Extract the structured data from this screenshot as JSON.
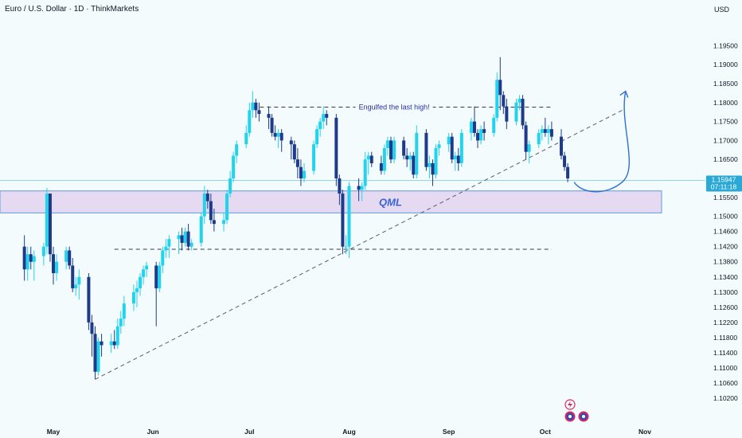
{
  "header": {
    "title": "Euro / U.S. Dollar · 1D · ThinkMarkets",
    "currency": "USD"
  },
  "colors": {
    "background": "#f3fbfd",
    "bullish": "#22d3ee",
    "bearish": "#1e3a8a",
    "zone_fill": "#e4d7f0",
    "zone_border": "#4f8fd6",
    "annotation": "#2b2f9e",
    "trendline": "#5b5b6b",
    "price_badge": "#2aa9d6",
    "projection": "#2f6fd6"
  },
  "chart_data": {
    "type": "candlestick",
    "y_ticks": [
      "1.19500",
      "1.19000",
      "1.18500",
      "1.18000",
      "1.17500",
      "1.17000",
      "1.16500",
      "1.15500",
      "1.15000",
      "1.14600",
      "1.14200",
      "1.13800",
      "1.13400",
      "1.13000",
      "1.12600",
      "1.12200",
      "1.11800",
      "1.11400",
      "1.11000",
      "1.10600",
      "1.10200"
    ],
    "x_ticks": [
      "May",
      "Jun",
      "Jul",
      "Aug",
      "Sep",
      "Oct",
      "Nov"
    ],
    "ylim": [
      1.0995,
      1.1995
    ],
    "current_price": "1.15947",
    "countdown": "07:11:18",
    "qml_zone": {
      "label": "QML",
      "from": 1.1509,
      "to": 1.1567
    },
    "resistance_line": {
      "price": 1.1788,
      "label": "Engulfed the last high!"
    },
    "support_line": {
      "price": 1.1413
    },
    "trendline": {
      "start": [
        "May 14",
        1.107
      ],
      "end": [
        "Oct 25",
        1.178
      ]
    },
    "projection": {
      "start": [
        "Oct 10",
        1.159
      ],
      "low": [
        "Oct 14",
        1.1575
      ],
      "end": [
        "Oct 26",
        1.183
      ]
    },
    "candles": [
      {
        "d": "Apr 22",
        "o": 1.142,
        "h": 1.145,
        "l": 1.133,
        "c": 1.136
      },
      {
        "d": "Apr 23",
        "o": 1.136,
        "h": 1.142,
        "l": 1.133,
        "c": 1.14
      },
      {
        "d": "Apr 24",
        "o": 1.14,
        "h": 1.142,
        "l": 1.136,
        "c": 1.138
      },
      {
        "d": "Apr 25",
        "o": 1.138,
        "h": 1.141,
        "l": 1.133,
        "c": 1.1395
      },
      {
        "d": "Apr 28",
        "o": 1.1395,
        "h": 1.143,
        "l": 1.137,
        "c": 1.142
      },
      {
        "d": "Apr 29",
        "o": 1.142,
        "h": 1.1575,
        "l": 1.14,
        "c": 1.156
      },
      {
        "d": "Apr 30",
        "o": 1.156,
        "h": 1.156,
        "l": 1.138,
        "c": 1.14
      },
      {
        "d": "May 1",
        "o": 1.14,
        "h": 1.142,
        "l": 1.132,
        "c": 1.135
      },
      {
        "d": "May 2",
        "o": 1.135,
        "h": 1.14,
        "l": 1.133,
        "c": 1.138
      },
      {
        "d": "May 5",
        "o": 1.138,
        "h": 1.142,
        "l": 1.136,
        "c": 1.141
      },
      {
        "d": "May 6",
        "o": 1.141,
        "h": 1.142,
        "l": 1.136,
        "c": 1.137
      },
      {
        "d": "May 7",
        "o": 1.137,
        "h": 1.139,
        "l": 1.13,
        "c": 1.131
      },
      {
        "d": "May 8",
        "o": 1.131,
        "h": 1.134,
        "l": 1.129,
        "c": 1.132
      },
      {
        "d": "May 9",
        "o": 1.132,
        "h": 1.136,
        "l": 1.128,
        "c": 1.134
      },
      {
        "d": "May 12",
        "o": 1.134,
        "h": 1.135,
        "l": 1.12,
        "c": 1.122
      },
      {
        "d": "May 13",
        "o": 1.122,
        "h": 1.124,
        "l": 1.113,
        "c": 1.119
      },
      {
        "d": "May 14",
        "o": 1.119,
        "h": 1.121,
        "l": 1.107,
        "c": 1.109
      },
      {
        "d": "May 15",
        "o": 1.109,
        "h": 1.118,
        "l": 1.108,
        "c": 1.117
      },
      {
        "d": "May 16",
        "o": 1.117,
        "h": 1.119,
        "l": 1.113,
        "c": 1.116
      },
      {
        "d": "May 19",
        "o": 1.116,
        "h": 1.119,
        "l": 1.114,
        "c": 1.117
      },
      {
        "d": "May 20",
        "o": 1.117,
        "h": 1.12,
        "l": 1.115,
        "c": 1.116
      },
      {
        "d": "May 21",
        "o": 1.116,
        "h": 1.123,
        "l": 1.115,
        "c": 1.121
      },
      {
        "d": "May 22",
        "o": 1.121,
        "h": 1.125,
        "l": 1.119,
        "c": 1.123
      },
      {
        "d": "May 23",
        "o": 1.123,
        "h": 1.129,
        "l": 1.121,
        "c": 1.127
      },
      {
        "d": "May 26",
        "o": 1.127,
        "h": 1.132,
        "l": 1.125,
        "c": 1.13
      },
      {
        "d": "May 27",
        "o": 1.13,
        "h": 1.133,
        "l": 1.126,
        "c": 1.131
      },
      {
        "d": "May 28",
        "o": 1.131,
        "h": 1.135,
        "l": 1.129,
        "c": 1.134
      },
      {
        "d": "May 29",
        "o": 1.134,
        "h": 1.137,
        "l": 1.132,
        "c": 1.136
      },
      {
        "d": "May 30",
        "o": 1.136,
        "h": 1.138,
        "l": 1.134,
        "c": 1.137
      },
      {
        "d": "Jun 2",
        "o": 1.137,
        "h": 1.138,
        "l": 1.121,
        "c": 1.131
      },
      {
        "d": "Jun 3",
        "o": 1.131,
        "h": 1.138,
        "l": 1.13,
        "c": 1.137
      },
      {
        "d": "Jun 4",
        "o": 1.137,
        "h": 1.142,
        "l": 1.135,
        "c": 1.141
      },
      {
        "d": "Jun 5",
        "o": 1.141,
        "h": 1.144,
        "l": 1.139,
        "c": 1.142
      },
      {
        "d": "Jun 6",
        "o": 1.142,
        "h": 1.145,
        "l": 1.139,
        "c": 1.144
      },
      {
        "d": "Jun 9",
        "o": 1.144,
        "h": 1.146,
        "l": 1.14,
        "c": 1.145
      },
      {
        "d": "Jun 10",
        "o": 1.145,
        "h": 1.147,
        "l": 1.141,
        "c": 1.143
      },
      {
        "d": "Jun 11",
        "o": 1.143,
        "h": 1.147,
        "l": 1.142,
        "c": 1.146
      },
      {
        "d": "Jun 12",
        "o": 1.146,
        "h": 1.148,
        "l": 1.141,
        "c": 1.142
      },
      {
        "d": "Jun 13",
        "o": 1.142,
        "h": 1.144,
        "l": 1.141,
        "c": 1.143
      },
      {
        "d": "Jun 16",
        "o": 1.143,
        "h": 1.151,
        "l": 1.142,
        "c": 1.15
      },
      {
        "d": "Jun 17",
        "o": 1.15,
        "h": 1.158,
        "l": 1.148,
        "c": 1.156
      },
      {
        "d": "Jun 18",
        "o": 1.156,
        "h": 1.157,
        "l": 1.152,
        "c": 1.154
      },
      {
        "d": "Jun 19",
        "o": 1.154,
        "h": 1.156,
        "l": 1.148,
        "c": 1.149
      },
      {
        "d": "Jun 20",
        "o": 1.149,
        "h": 1.152,
        "l": 1.146,
        "c": 1.148
      },
      {
        "d": "Jun 23",
        "o": 1.148,
        "h": 1.151,
        "l": 1.146,
        "c": 1.149
      },
      {
        "d": "Jun 24",
        "o": 1.149,
        "h": 1.157,
        "l": 1.148,
        "c": 1.156
      },
      {
        "d": "Jun 25",
        "o": 1.156,
        "h": 1.162,
        "l": 1.155,
        "c": 1.16
      },
      {
        "d": "Jun 26",
        "o": 1.16,
        "h": 1.167,
        "l": 1.159,
        "c": 1.166
      },
      {
        "d": "Jun 27",
        "o": 1.166,
        "h": 1.17,
        "l": 1.164,
        "c": 1.169
      },
      {
        "d": "Jun 30",
        "o": 1.169,
        "h": 1.174,
        "l": 1.168,
        "c": 1.172
      },
      {
        "d": "Jul 1",
        "o": 1.172,
        "h": 1.18,
        "l": 1.171,
        "c": 1.178
      },
      {
        "d": "Jul 2",
        "o": 1.178,
        "h": 1.183,
        "l": 1.176,
        "c": 1.18
      },
      {
        "d": "Jul 3",
        "o": 1.18,
        "h": 1.181,
        "l": 1.176,
        "c": 1.178
      },
      {
        "d": "Jul 4",
        "o": 1.178,
        "h": 1.18,
        "l": 1.175,
        "c": 1.177
      },
      {
        "d": "Jul 7",
        "o": 1.177,
        "h": 1.179,
        "l": 1.173,
        "c": 1.176
      },
      {
        "d": "Jul 8",
        "o": 1.176,
        "h": 1.177,
        "l": 1.171,
        "c": 1.172
      },
      {
        "d": "Jul 9",
        "o": 1.172,
        "h": 1.174,
        "l": 1.17,
        "c": 1.171
      },
      {
        "d": "Jul 10",
        "o": 1.171,
        "h": 1.173,
        "l": 1.168,
        "c": 1.172
      },
      {
        "d": "Jul 11",
        "o": 1.172,
        "h": 1.173,
        "l": 1.167,
        "c": 1.17
      },
      {
        "d": "Jul 14",
        "o": 1.17,
        "h": 1.171,
        "l": 1.165,
        "c": 1.169
      },
      {
        "d": "Jul 15",
        "o": 1.169,
        "h": 1.17,
        "l": 1.164,
        "c": 1.165
      },
      {
        "d": "Jul 16",
        "o": 1.165,
        "h": 1.168,
        "l": 1.16,
        "c": 1.163
      },
      {
        "d": "Jul 17",
        "o": 1.163,
        "h": 1.165,
        "l": 1.158,
        "c": 1.16
      },
      {
        "d": "Jul 18",
        "o": 1.16,
        "h": 1.164,
        "l": 1.159,
        "c": 1.162
      },
      {
        "d": "Jul 21",
        "o": 1.162,
        "h": 1.17,
        "l": 1.161,
        "c": 1.169
      },
      {
        "d": "Jul 22",
        "o": 1.169,
        "h": 1.174,
        "l": 1.168,
        "c": 1.173
      },
      {
        "d": "Jul 23",
        "o": 1.173,
        "h": 1.176,
        "l": 1.171,
        "c": 1.175
      },
      {
        "d": "Jul 24",
        "o": 1.175,
        "h": 1.179,
        "l": 1.173,
        "c": 1.177
      },
      {
        "d": "Jul 25",
        "o": 1.177,
        "h": 1.178,
        "l": 1.174,
        "c": 1.176
      },
      {
        "d": "Jul 28",
        "o": 1.176,
        "h": 1.177,
        "l": 1.158,
        "c": 1.16
      },
      {
        "d": "Jul 29",
        "o": 1.16,
        "h": 1.161,
        "l": 1.153,
        "c": 1.156
      },
      {
        "d": "Jul 30",
        "o": 1.156,
        "h": 1.157,
        "l": 1.14,
        "c": 1.142
      },
      {
        "d": "Jul 31",
        "o": 1.142,
        "h": 1.145,
        "l": 1.14,
        "c": 1.142
      },
      {
        "d": "Aug 1",
        "o": 1.142,
        "h": 1.159,
        "l": 1.139,
        "c": 1.158
      },
      {
        "d": "Aug 4",
        "o": 1.158,
        "h": 1.16,
        "l": 1.154,
        "c": 1.157
      },
      {
        "d": "Aug 5",
        "o": 1.157,
        "h": 1.159,
        "l": 1.154,
        "c": 1.158
      },
      {
        "d": "Aug 6",
        "o": 1.158,
        "h": 1.167,
        "l": 1.157,
        "c": 1.165
      },
      {
        "d": "Aug 7",
        "o": 1.165,
        "h": 1.167,
        "l": 1.161,
        "c": 1.166
      },
      {
        "d": "Aug 8",
        "o": 1.166,
        "h": 1.167,
        "l": 1.163,
        "c": 1.164
      },
      {
        "d": "Aug 11",
        "o": 1.164,
        "h": 1.166,
        "l": 1.161,
        "c": 1.162
      },
      {
        "d": "Aug 12",
        "o": 1.162,
        "h": 1.169,
        "l": 1.161,
        "c": 1.168
      },
      {
        "d": "Aug 13",
        "o": 1.168,
        "h": 1.171,
        "l": 1.166,
        "c": 1.17
      },
      {
        "d": "Aug 14",
        "o": 1.17,
        "h": 1.171,
        "l": 1.164,
        "c": 1.165
      },
      {
        "d": "Aug 15",
        "o": 1.165,
        "h": 1.171,
        "l": 1.164,
        "c": 1.17
      },
      {
        "d": "Aug 18",
        "o": 1.17,
        "h": 1.171,
        "l": 1.165,
        "c": 1.166
      },
      {
        "d": "Aug 19",
        "o": 1.166,
        "h": 1.168,
        "l": 1.163,
        "c": 1.165
      },
      {
        "d": "Aug 20",
        "o": 1.165,
        "h": 1.167,
        "l": 1.162,
        "c": 1.166
      },
      {
        "d": "Aug 21",
        "o": 1.166,
        "h": 1.167,
        "l": 1.16,
        "c": 1.161
      },
      {
        "d": "Aug 22",
        "o": 1.161,
        "h": 1.174,
        "l": 1.16,
        "c": 1.172
      },
      {
        "d": "Aug 25",
        "o": 1.172,
        "h": 1.173,
        "l": 1.162,
        "c": 1.163
      },
      {
        "d": "Aug 26",
        "o": 1.163,
        "h": 1.166,
        "l": 1.16,
        "c": 1.164
      },
      {
        "d": "Aug 27",
        "o": 1.164,
        "h": 1.165,
        "l": 1.158,
        "c": 1.161
      },
      {
        "d": "Aug 28",
        "o": 1.161,
        "h": 1.169,
        "l": 1.16,
        "c": 1.168
      },
      {
        "d": "Aug 29",
        "o": 1.168,
        "h": 1.17,
        "l": 1.166,
        "c": 1.169
      },
      {
        "d": "Sep 1",
        "o": 1.169,
        "h": 1.172,
        "l": 1.167,
        "c": 1.171
      },
      {
        "d": "Sep 2",
        "o": 1.171,
        "h": 1.172,
        "l": 1.164,
        "c": 1.165
      },
      {
        "d": "Sep 3",
        "o": 1.165,
        "h": 1.167,
        "l": 1.162,
        "c": 1.166
      },
      {
        "d": "Sep 4",
        "o": 1.166,
        "h": 1.168,
        "l": 1.162,
        "c": 1.164
      },
      {
        "d": "Sep 5",
        "o": 1.164,
        "h": 1.173,
        "l": 1.163,
        "c": 1.172
      },
      {
        "d": "Sep 8",
        "o": 1.172,
        "h": 1.176,
        "l": 1.17,
        "c": 1.175
      },
      {
        "d": "Sep 9",
        "o": 1.175,
        "h": 1.179,
        "l": 1.171,
        "c": 1.172
      },
      {
        "d": "Sep 10",
        "o": 1.172,
        "h": 1.173,
        "l": 1.168,
        "c": 1.17
      },
      {
        "d": "Sep 11",
        "o": 1.17,
        "h": 1.174,
        "l": 1.169,
        "c": 1.173
      },
      {
        "d": "Sep 12",
        "o": 1.173,
        "h": 1.175,
        "l": 1.17,
        "c": 1.172
      },
      {
        "d": "Sep 15",
        "o": 1.172,
        "h": 1.177,
        "l": 1.171,
        "c": 1.176
      },
      {
        "d": "Sep 16",
        "o": 1.176,
        "h": 1.188,
        "l": 1.175,
        "c": 1.186
      },
      {
        "d": "Sep 17",
        "o": 1.186,
        "h": 1.192,
        "l": 1.178,
        "c": 1.182
      },
      {
        "d": "Sep 18",
        "o": 1.182,
        "h": 1.183,
        "l": 1.177,
        "c": 1.179
      },
      {
        "d": "Sep 19",
        "o": 1.179,
        "h": 1.181,
        "l": 1.173,
        "c": 1.175
      },
      {
        "d": "Sep 22",
        "o": 1.175,
        "h": 1.181,
        "l": 1.174,
        "c": 1.18
      },
      {
        "d": "Sep 23",
        "o": 1.18,
        "h": 1.182,
        "l": 1.178,
        "c": 1.181
      },
      {
        "d": "Sep 24",
        "o": 1.181,
        "h": 1.182,
        "l": 1.173,
        "c": 1.174
      },
      {
        "d": "Sep 25",
        "o": 1.174,
        "h": 1.175,
        "l": 1.165,
        "c": 1.167
      },
      {
        "d": "Sep 26",
        "o": 1.167,
        "h": 1.17,
        "l": 1.164,
        "c": 1.169
      },
      {
        "d": "Sep 29",
        "o": 1.169,
        "h": 1.173,
        "l": 1.168,
        "c": 1.172
      },
      {
        "d": "Sep 30",
        "o": 1.172,
        "h": 1.174,
        "l": 1.17,
        "c": 1.173
      },
      {
        "d": "Oct 1",
        "o": 1.173,
        "h": 1.176,
        "l": 1.171,
        "c": 1.172
      },
      {
        "d": "Oct 2",
        "o": 1.172,
        "h": 1.174,
        "l": 1.169,
        "c": 1.173
      },
      {
        "d": "Oct 3",
        "o": 1.173,
        "h": 1.175,
        "l": 1.17,
        "c": 1.171
      },
      {
        "d": "Oct 6",
        "o": 1.171,
        "h": 1.173,
        "l": 1.165,
        "c": 1.166
      },
      {
        "d": "Oct 7",
        "o": 1.166,
        "h": 1.167,
        "l": 1.162,
        "c": 1.163
      },
      {
        "d": "Oct 8",
        "o": 1.163,
        "h": 1.164,
        "l": 1.159,
        "c": 1.16
      }
    ]
  }
}
